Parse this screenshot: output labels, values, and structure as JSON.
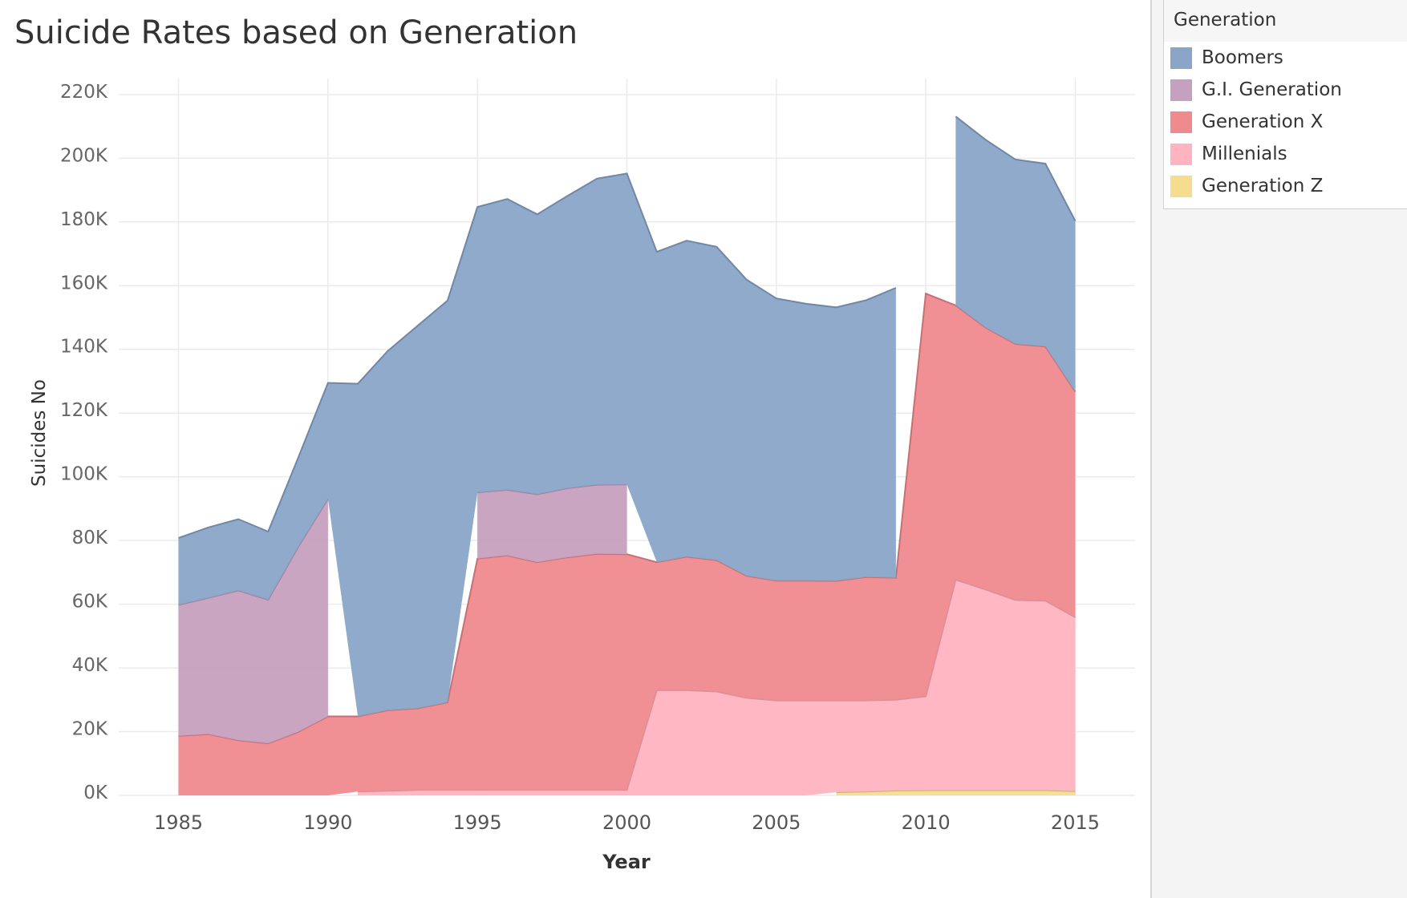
{
  "chart_data": {
    "type": "area",
    "title": "Suicide Rates based on Generation",
    "xlabel": "Year",
    "ylabel": "Suicides No",
    "stacked": true,
    "grid": true,
    "legend_title": "Generation",
    "legend_placement": "right",
    "ylim": [
      0,
      225000
    ],
    "xlim": [
      1983,
      2017
    ],
    "yticks": [
      0,
      20000,
      40000,
      60000,
      80000,
      100000,
      120000,
      140000,
      160000,
      180000,
      200000,
      220000
    ],
    "ytick_labels": [
      "0K",
      "20K",
      "40K",
      "60K",
      "80K",
      "100K",
      "120K",
      "140K",
      "160K",
      "180K",
      "200K",
      "220K"
    ],
    "xticks": [
      1985,
      1990,
      1995,
      2000,
      2005,
      2010,
      2015
    ],
    "xtick_labels": [
      "1985",
      "1990",
      "1995",
      "2000",
      "2005",
      "2010",
      "2015"
    ],
    "x": [
      1985,
      1986,
      1987,
      1988,
      1989,
      1990,
      1991,
      1992,
      1993,
      1994,
      1995,
      1996,
      1997,
      1998,
      1999,
      2000,
      2001,
      2002,
      2003,
      2004,
      2005,
      2006,
      2007,
      2008,
      2009,
      2010,
      2011,
      2012,
      2013,
      2014,
      2015
    ],
    "series": [
      {
        "name": "Generation Z",
        "color": "#f5dc8e",
        "values": [
          null,
          null,
          null,
          null,
          null,
          null,
          null,
          null,
          null,
          null,
          null,
          null,
          null,
          null,
          null,
          null,
          null,
          null,
          null,
          null,
          null,
          null,
          1000,
          1200,
          1500,
          1600,
          1600,
          1600,
          1600,
          1600,
          1300
        ]
      },
      {
        "name": "Millenials",
        "color": "#ffb4c0",
        "values": [
          null,
          null,
          null,
          null,
          null,
          null,
          1200,
          1400,
          1700,
          1700,
          1700,
          1700,
          1700,
          1700,
          1700,
          1700,
          33000,
          33000,
          32600,
          30600,
          29800,
          29800,
          28800,
          28600,
          28500,
          29500,
          66100,
          63000,
          59700,
          59500,
          54600
        ]
      },
      {
        "name": "Generation X",
        "color": "#ef8a8f",
        "values": [
          18700,
          19200,
          17300,
          16300,
          19900,
          24800,
          23600,
          25300,
          25600,
          27500,
          72600,
          73600,
          71500,
          73000,
          74100,
          74000,
          40200,
          41900,
          41200,
          38300,
          37600,
          37600,
          37500,
          38700,
          38300,
          126400,
          86100,
          82200,
          80400,
          79800,
          70800
        ]
      },
      {
        "name": "G.I. Generation",
        "color": "#c6a0bf",
        "values": [
          41100,
          42800,
          47000,
          45100,
          58000,
          68300,
          null,
          null,
          null,
          null,
          20800,
          20600,
          21300,
          21700,
          21700,
          21900,
          null,
          null,
          null,
          null,
          null,
          null,
          null,
          null,
          null,
          null,
          null,
          null,
          null,
          null,
          null
        ]
      },
      {
        "name": "Boomers",
        "color": "#8aa5c8",
        "values": [
          21000,
          22100,
          22400,
          21400,
          28000,
          36400,
          104400,
          112800,
          120100,
          126100,
          89600,
          91300,
          87900,
          91700,
          96100,
          97600,
          97400,
          99200,
          98400,
          93000,
          88600,
          86900,
          85900,
          86900,
          91000,
          null,
          59300,
          59000,
          57900,
          57400,
          53600
        ]
      }
    ]
  }
}
